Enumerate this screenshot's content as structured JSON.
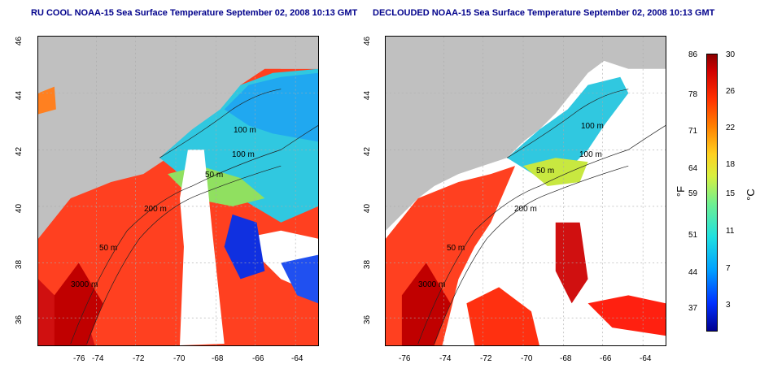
{
  "titles": {
    "left": "RU COOL NOAA-15 Sea Surface Temperature September 02, 2008 10:13 GMT",
    "right": "DECLOUDED NOAA-15 Sea Surface Temperature September 02, 2008 10:13 GMT"
  },
  "axes": {
    "x_ticks": [
      "-76",
      "-74",
      "-72",
      "-70",
      "-68",
      "-66",
      "-64"
    ],
    "y_ticks": [
      "46",
      "44",
      "42",
      "40",
      "38",
      "36"
    ]
  },
  "contour_labels": {
    "left": [
      "100 m",
      "100 m",
      "50 m",
      "200 m",
      "50 m",
      "3000 m"
    ],
    "right": [
      "100 m",
      "100 m",
      "50 m",
      "200 m",
      "50 m",
      "3000 m"
    ]
  },
  "colorbar": {
    "fahrenheit": [
      "86",
      "78",
      "71",
      "64",
      "59",
      "51",
      "44",
      "37"
    ],
    "celsius": [
      "30",
      "26",
      "22",
      "18",
      "15",
      "11",
      "7",
      "3"
    ],
    "unit_f": "°F",
    "unit_c": "°C"
  },
  "colors": {
    "land": "#c0c0c0",
    "title": "#00008b",
    "warm": "#ff3a10",
    "cold": "#00b0ff"
  }
}
